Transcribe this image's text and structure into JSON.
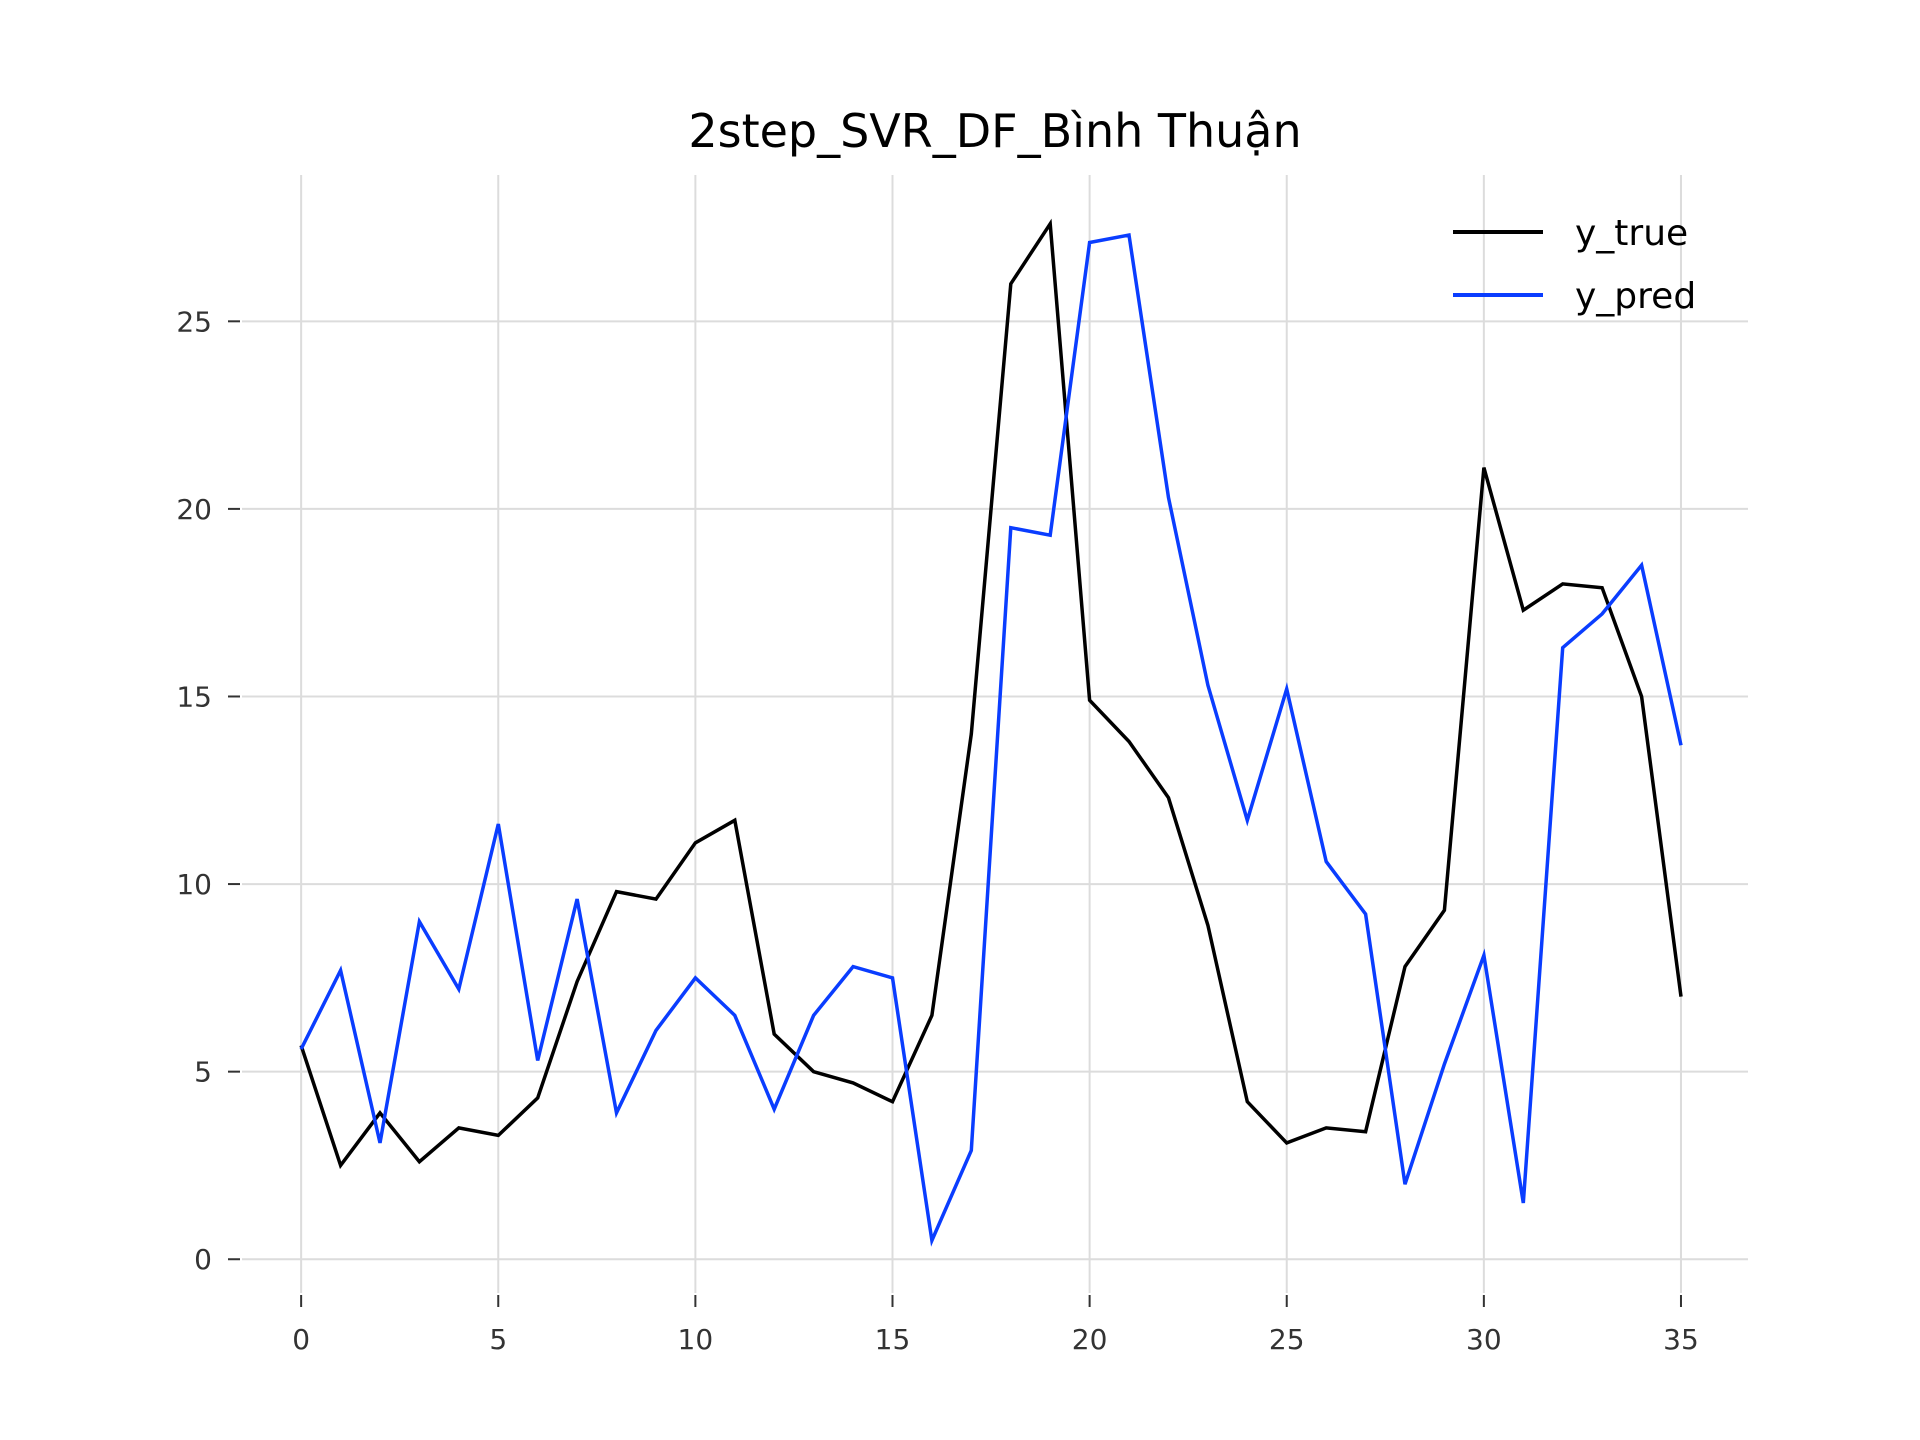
{
  "chart_data": {
    "type": "line",
    "title": "2step_SVR_DF_Bình Thuận",
    "xlabel": "",
    "ylabel": "",
    "x": [
      0,
      1,
      2,
      3,
      4,
      5,
      6,
      7,
      8,
      9,
      10,
      11,
      12,
      13,
      14,
      15,
      16,
      17,
      18,
      19,
      20,
      21,
      22,
      23,
      24,
      25,
      26,
      27,
      28,
      29,
      30,
      31,
      32,
      33,
      34,
      35
    ],
    "xlim": [
      -1.5,
      36.7
    ],
    "ylim": [
      -0.9,
      28.9
    ],
    "xticks": [
      0,
      5,
      10,
      15,
      20,
      25,
      30,
      35
    ],
    "xtick_labels": [
      "0",
      "5",
      "10",
      "15",
      "20",
      "25",
      "30",
      "35"
    ],
    "yticks": [
      0,
      5,
      10,
      15,
      20,
      25
    ],
    "ytick_labels": [
      "0",
      "5",
      "10",
      "15",
      "20",
      "25"
    ],
    "grid": true,
    "legend_position": "top-right",
    "series": [
      {
        "name": "y_true",
        "color": "#000000",
        "values": [
          5.7,
          2.5,
          3.9,
          2.6,
          3.5,
          3.3,
          4.3,
          7.4,
          9.8,
          9.6,
          11.1,
          11.7,
          6.0,
          5.0,
          4.7,
          4.2,
          6.5,
          14.0,
          26.0,
          27.6,
          14.9,
          13.8,
          12.3,
          8.9,
          4.2,
          3.1,
          3.5,
          3.4,
          7.8,
          9.3,
          21.1,
          17.3,
          18.0,
          17.9,
          15.0,
          7.0
        ]
      },
      {
        "name": "y_pred",
        "color": "#0a3dff",
        "values": [
          5.6,
          7.7,
          3.1,
          9.0,
          7.2,
          11.6,
          5.3,
          9.6,
          3.9,
          6.1,
          7.5,
          6.5,
          4.0,
          6.5,
          7.8,
          7.5,
          0.5,
          2.9,
          19.5,
          19.3,
          27.1,
          27.3,
          20.3,
          15.3,
          11.7,
          15.2,
          10.6,
          9.2,
          2.0,
          5.2,
          8.1,
          1.5,
          16.3,
          17.2,
          18.5,
          13.7
        ]
      }
    ]
  }
}
